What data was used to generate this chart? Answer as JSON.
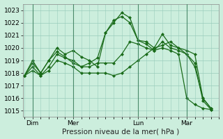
{
  "title": "Pression niveau de la mer( hPa )",
  "bg_color": "#cceedd",
  "grid_color": "#99ccbb",
  "line_color": "#1a6b1a",
  "ylim": [
    1014.5,
    1023.5
  ],
  "ytick_labels": [
    "1015",
    "1016",
    "1017",
    "1018",
    "1019",
    "1020",
    "1021",
    "1022",
    "1023"
  ],
  "ytick_vals": [
    1015,
    1016,
    1017,
    1018,
    1019,
    1020,
    1021,
    1022,
    1023
  ],
  "tick_fontsize": 6.5,
  "xlabel_fontsize": 7.5,
  "xtick_labels": [
    "Dim",
    "Mer",
    "Lun",
    "Mar"
  ],
  "xtick_positions": [
    1,
    6,
    14,
    20
  ],
  "vline_positions": [
    1,
    6,
    14,
    20
  ],
  "xlim": [
    -0.2,
    24.0
  ],
  "series": [
    [
      1017.8,
      1019.0,
      1018.0,
      1019.0,
      1020.0,
      1019.5,
      1019.8,
      1019.3,
      1019.0,
      1018.5,
      1021.2,
      1022.0,
      1022.8,
      1022.4,
      1020.6,
      1020.5,
      1020.0,
      1021.1,
      1020.2,
      1020.0,
      1019.5,
      1018.5,
      1016.0,
      1015.2
    ],
    [
      1017.8,
      1018.8,
      1018.0,
      1019.0,
      1019.7,
      1019.3,
      1018.8,
      1018.5,
      1018.8,
      1019.2,
      1021.2,
      1022.2,
      1022.5,
      1022.0,
      1020.6,
      1020.3,
      1019.8,
      1020.5,
      1020.0,
      1019.8,
      1019.5,
      1018.8,
      1015.8,
      1015.1
    ],
    [
      1017.8,
      1018.5,
      1017.8,
      1018.5,
      1019.5,
      1019.2,
      1019.0,
      1018.5,
      1018.5,
      1018.8,
      1018.8,
      1018.8,
      1019.5,
      1020.5,
      1020.3,
      1020.0,
      1019.8,
      1020.0,
      1019.8,
      1019.5,
      1016.0,
      1015.5,
      1015.2,
      1015.1
    ],
    [
      1017.8,
      1018.2,
      1017.8,
      1018.2,
      1019.0,
      1018.8,
      1018.5,
      1018.0,
      1018.0,
      1018.0,
      1018.0,
      1017.8,
      1018.0,
      1018.5,
      1019.0,
      1019.5,
      1020.0,
      1020.2,
      1020.5,
      1020.0,
      1019.8,
      1019.5,
      1016.0,
      1015.2
    ]
  ],
  "marker": "D",
  "marker_size": 2.0,
  "linewidth": 0.9
}
